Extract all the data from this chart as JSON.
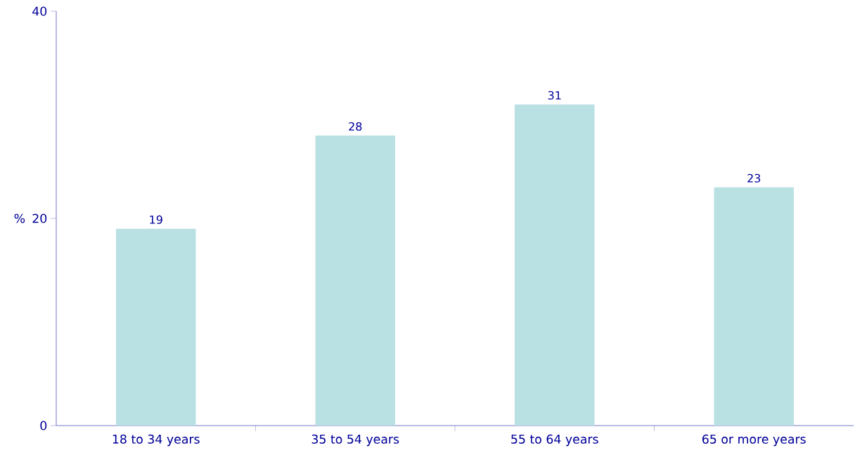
{
  "chart_data": {
    "type": "bar",
    "ylabel": "%",
    "categories": [
      "18 to 34 years",
      "35 to 54 years",
      "55 to 64 years",
      "65 or more years"
    ],
    "values": [
      19,
      28,
      31,
      23
    ],
    "color": "#b9e0e2",
    "ylim": [
      0,
      40
    ],
    "yticks": [
      0,
      20,
      40
    ],
    "data_labels": true
  }
}
